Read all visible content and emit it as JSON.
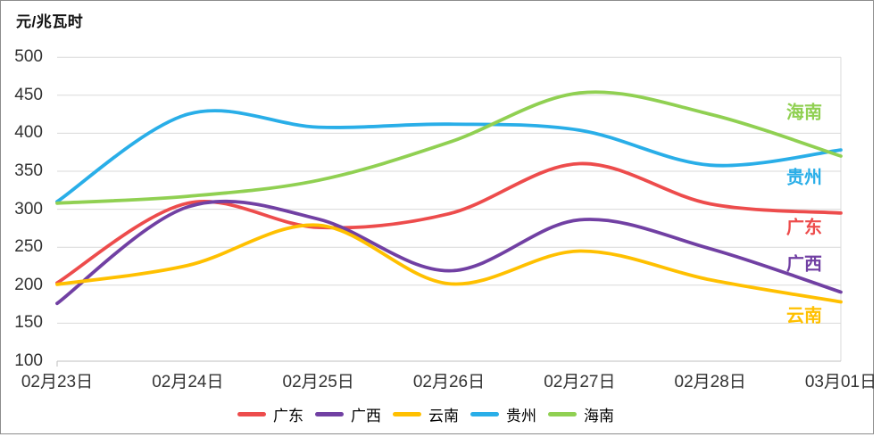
{
  "chart_data": {
    "type": "line",
    "title": "元/兆瓦时",
    "categories": [
      "02月23日",
      "02月24日",
      "02月25日",
      "02月26日",
      "02月27日",
      "02月28日",
      "03月01日"
    ],
    "series": [
      {
        "name": "广东",
        "color": "#ED4C4C",
        "values": [
          203,
          308,
          276,
          294,
          360,
          307,
          295
        ],
        "end_label_y": 252
      },
      {
        "name": "广西",
        "color": "#7140A3",
        "values": [
          176,
          303,
          287,
          219,
          286,
          248,
          191
        ],
        "end_label_y": 293
      },
      {
        "name": "云南",
        "color": "#FFC000",
        "values": [
          201,
          226,
          279,
          202,
          245,
          207,
          178
        ],
        "end_label_y": 351
      },
      {
        "name": "贵州",
        "color": "#29AEE8",
        "values": [
          310,
          425,
          408,
          412,
          404,
          358,
          378
        ],
        "end_label_y": 196
      },
      {
        "name": "海南",
        "color": "#90D052",
        "values": [
          308,
          317,
          338,
          388,
          453,
          425,
          370
        ],
        "end_label_y": 123
      }
    ],
    "ylim": [
      100,
      500
    ],
    "ytick_step": 50,
    "xlabel": "",
    "ylabel": "元/兆瓦时",
    "grid": "horizontal",
    "smooth": true,
    "legend_position": "bottom-center",
    "end_labels_x": 900,
    "colors": {
      "grid": "#d9d9d9",
      "axis": "#bfbfbf",
      "text": "#323232"
    }
  }
}
